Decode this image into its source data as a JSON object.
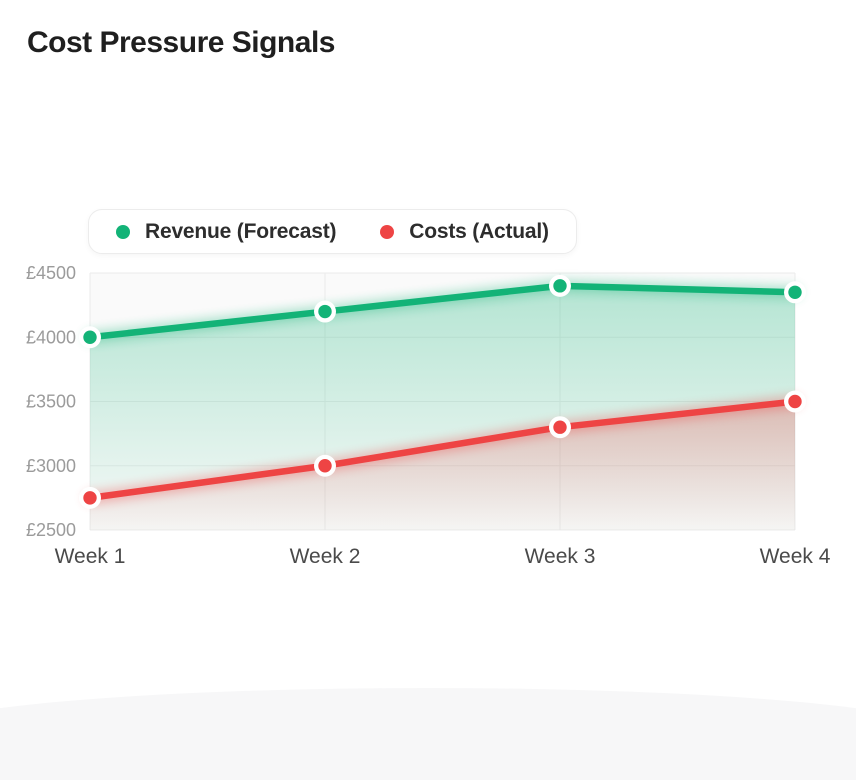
{
  "page": {
    "title": "Cost Pressure Signals"
  },
  "legend": {
    "items": [
      {
        "key": "revenue",
        "label": "Revenue (Forecast)",
        "color": "#13b377"
      },
      {
        "key": "costs",
        "label": "Costs (Actual)",
        "color": "#ee4444"
      }
    ]
  },
  "chart_data": {
    "type": "line",
    "title": "Cost Pressure Signals",
    "categories": [
      "Week 1",
      "Week 2",
      "Week 3",
      "Week 4"
    ],
    "series": [
      {
        "key": "revenue",
        "name": "Revenue (Forecast)",
        "color": "#13b377",
        "values": [
          4000,
          4200,
          4400,
          4350
        ]
      },
      {
        "key": "costs",
        "name": "Costs (Actual)",
        "color": "#ee4444",
        "values": [
          2750,
          3000,
          3300,
          3500
        ]
      }
    ],
    "xlabel": "",
    "ylabel": "",
    "ylabel_prefix": "£",
    "yticks": [
      2500,
      3000,
      3500,
      4000,
      4500
    ],
    "ylim": [
      2500,
      4500
    ],
    "grid": true,
    "area_fill": true,
    "legend_position": "top",
    "colors": {
      "plot_background": "#fafafa",
      "gridline": "#ebebeb",
      "ytick_text": "#9b9b9b",
      "xtick_text": "#4a4a4a"
    }
  }
}
